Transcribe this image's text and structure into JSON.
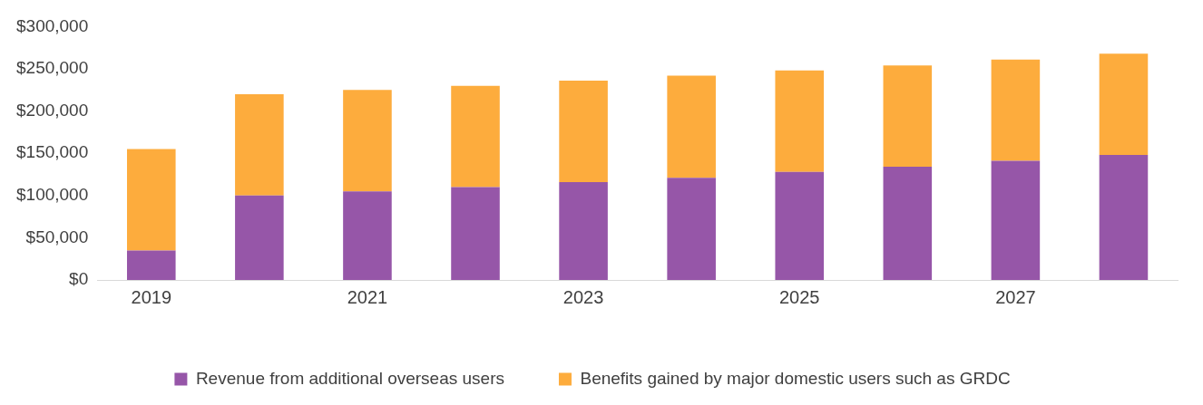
{
  "chart_data": {
    "type": "bar",
    "stacked": true,
    "categories": [
      "2019",
      null,
      "2021",
      null,
      "2023",
      null,
      "2025",
      null,
      "2027",
      null
    ],
    "series": [
      {
        "name": "Revenue from additional overseas users",
        "color": "#9656a8",
        "values": [
          35000,
          100000,
          105000,
          110000,
          116000,
          121000,
          128000,
          134000,
          141000,
          148000
        ]
      },
      {
        "name": "Benefits gained by major domestic users such as GRDC",
        "color": "#fdac3d",
        "values": [
          120000,
          120000,
          120000,
          120000,
          120000,
          121000,
          120000,
          120000,
          120000,
          120000
        ]
      }
    ],
    "ylim": [
      0,
      300000
    ],
    "yticks": [
      {
        "value": 0,
        "label": "$0"
      },
      {
        "value": 50000,
        "label": "$50,000"
      },
      {
        "value": 100000,
        "label": "$100,000"
      },
      {
        "value": 150000,
        "label": "$150,000"
      },
      {
        "value": 200000,
        "label": "$200,000"
      },
      {
        "value": 250000,
        "label": "$250,000"
      },
      {
        "value": 300000,
        "label": "$300,000"
      }
    ],
    "grid": false,
    "legend": "bottom"
  }
}
